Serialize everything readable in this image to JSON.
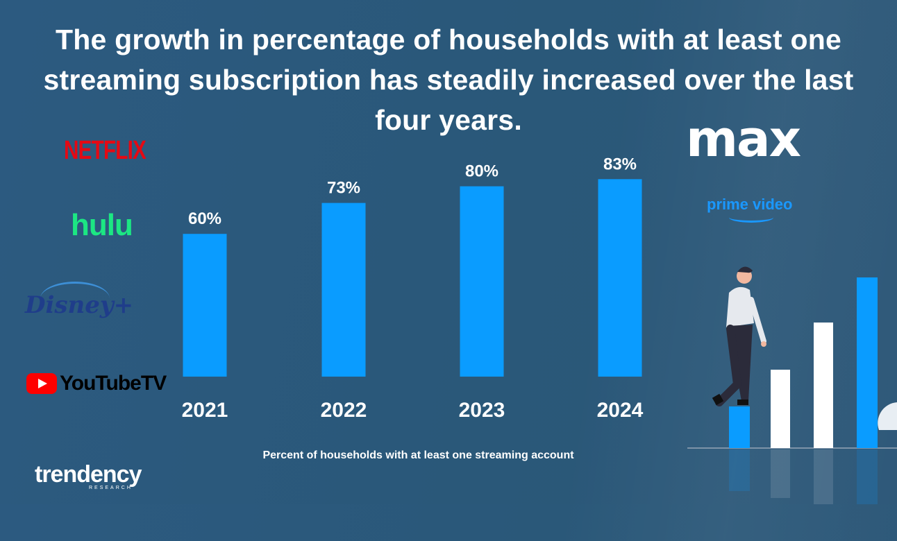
{
  "title": "The growth in percentage of households with at least one streaming subscription has steadily increased over the last four years.",
  "caption": "Percent of households with at least one streaming account",
  "logos": {
    "netflix": "NETFLIX",
    "hulu": "hulu",
    "disney": "Disney+",
    "youtube": "YouTubeTV",
    "max": "max",
    "prime": "prime video",
    "trendency": "trendency",
    "trendency_sub": "RESEARCH"
  },
  "colors": {
    "bar": "#0a9cff",
    "background": "#2c5a80",
    "text": "#ffffff"
  },
  "chart_data": {
    "type": "bar",
    "title": "The growth in percentage of households with at least one streaming subscription has steadily increased over the last four years.",
    "categories": [
      "2021",
      "2022",
      "2023",
      "2024"
    ],
    "values": [
      60,
      73,
      80,
      83
    ],
    "value_labels": [
      "60%",
      "73%",
      "80%",
      "83%"
    ],
    "xlabel": "Percent of households with at least one streaming account",
    "ylabel": "",
    "ylim": [
      0,
      100
    ],
    "grid": false,
    "legend": "none"
  }
}
